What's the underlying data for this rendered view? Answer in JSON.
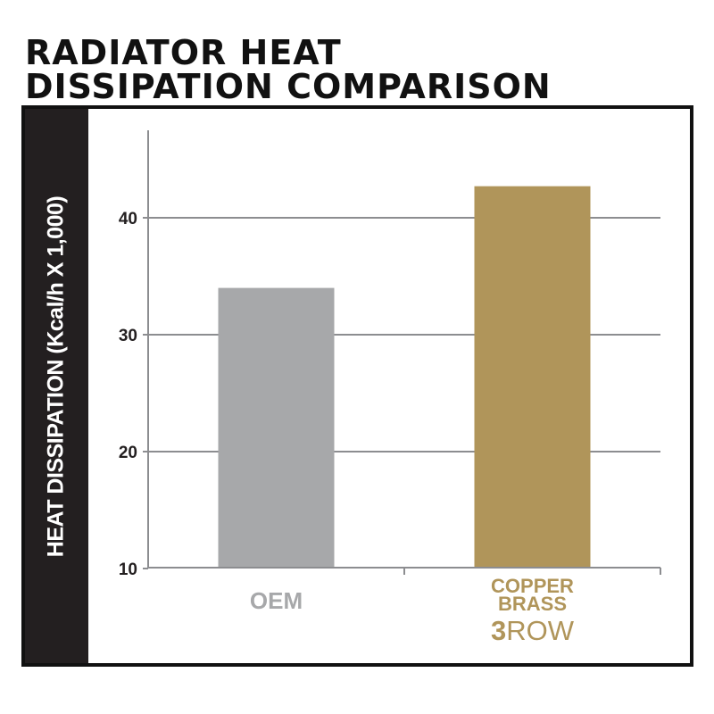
{
  "chart_data": {
    "type": "bar",
    "title_lines": [
      "RADIATOR HEAT",
      "DISSIPATION COMPARISON"
    ],
    "ylabel": "HEAT DISSIPATION (Kcal/h X 1,000)",
    "ylim": [
      10,
      48
    ],
    "yticks": [
      "10",
      "20",
      "30",
      "40"
    ],
    "grid": true,
    "categories": [
      {
        "lines": [
          "OEM"
        ],
        "color": "#a7a8aa"
      },
      {
        "lines": [
          "COPPER",
          "BRASS"
        ],
        "badge_bold": "3",
        "badge_rest": "ROW",
        "color": "#b0955a"
      }
    ],
    "values": [
      34,
      42.7
    ]
  }
}
